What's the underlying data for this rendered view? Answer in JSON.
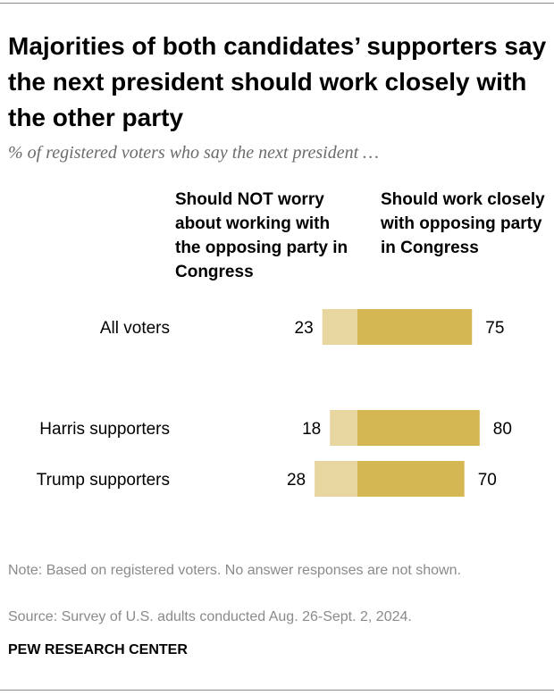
{
  "title": "Majorities of both candidates’ supporters say the next president should work closely with the other party",
  "subtitle": "% of registered voters who say the next president …",
  "column_headers": {
    "left": "Should NOT worry about working with the opposing party in Congress",
    "right": "Should work closely with opposing party in Congress"
  },
  "colors": {
    "not_worry": "#e8d6a0",
    "work_closely": "#d4b653"
  },
  "chart_data": {
    "type": "bar",
    "orientation": "horizontal-diverging",
    "categories": [
      "All voters",
      "Harris supporters",
      "Trump supporters"
    ],
    "series": [
      {
        "name": "Should NOT worry about working with the opposing party in Congress",
        "values": [
          23,
          18,
          28
        ]
      },
      {
        "name": "Should work closely with opposing party in Congress",
        "values": [
          75,
          80,
          70
        ]
      }
    ]
  },
  "note": "Note: Based on registered voters. No answer responses are not shown.",
  "source": "Source: Survey of U.S. adults conducted Aug. 26-Sept. 2, 2024.",
  "brand": "PEW RESEARCH CENTER"
}
